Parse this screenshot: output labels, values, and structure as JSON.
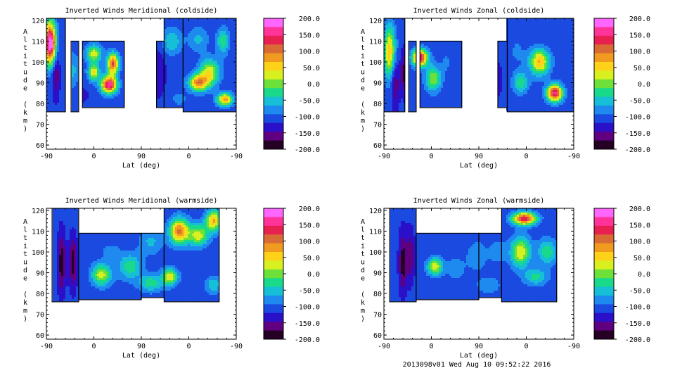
{
  "footer": "2013098v01 Wed Aug 10 09:52:22 2016",
  "colorbar": {
    "labels": [
      "200.0",
      "150.0",
      "100.0",
      "50.0",
      "0.0",
      "-50.0",
      "-100.0",
      "-150.0",
      "-200.0"
    ],
    "colors": [
      "#ff66ff",
      "#ff3399",
      "#e8204f",
      "#d96a35",
      "#f09a20",
      "#ffd21a",
      "#d8f020",
      "#6ee03a",
      "#19d98a",
      "#16bfd6",
      "#1e8af0",
      "#1a4ae0",
      "#2a10c8",
      "#600080",
      "#240024"
    ]
  },
  "chart_data": [
    {
      "type": "heatmap",
      "title": "Inverted Winds Meridional (coldside)",
      "xlabel": "Lat (deg)",
      "ylabel": "Altitude (km)",
      "xticks": [
        "-90",
        "0",
        "90",
        "0",
        "-90"
      ],
      "yticks": [
        "60",
        "70",
        "80",
        "90",
        "100",
        "110",
        "120"
      ],
      "ylim": [
        58,
        121
      ],
      "zlim": [
        -200,
        200
      ],
      "blobs": [
        {
          "ix": 0.02,
          "iy": 109,
          "sx": 0.03,
          "sy": 10,
          "v": 210
        },
        {
          "ix": 0.05,
          "iy": 95,
          "sx": 0.02,
          "sy": 12,
          "v": -170
        },
        {
          "ix": 0.14,
          "iy": 96,
          "sx": 0.03,
          "sy": 8,
          "v": -60
        },
        {
          "ix": 0.25,
          "iy": 104,
          "sx": 0.04,
          "sy": 4,
          "v": 30
        },
        {
          "ix": 0.35,
          "iy": 99,
          "sx": 0.03,
          "sy": 5,
          "v": 120
        },
        {
          "ix": 0.33,
          "iy": 89,
          "sx": 0.04,
          "sy": 4,
          "v": 170
        },
        {
          "ix": 0.19,
          "iy": 84,
          "sx": 0.04,
          "sy": 4,
          "v": -130
        },
        {
          "ix": 0.25,
          "iy": 95,
          "sx": 0.03,
          "sy": 4,
          "v": 40
        },
        {
          "ix": 0.59,
          "iy": 95,
          "sx": 0.04,
          "sy": 12,
          "v": -140
        },
        {
          "ix": 0.66,
          "iy": 110,
          "sx": 0.05,
          "sy": 6,
          "v": -40
        },
        {
          "ix": 0.8,
          "iy": 90,
          "sx": 0.05,
          "sy": 4,
          "v": 90
        },
        {
          "ix": 0.86,
          "iy": 95,
          "sx": 0.05,
          "sy": 6,
          "v": 40
        },
        {
          "ix": 0.8,
          "iy": 111,
          "sx": 0.05,
          "sy": 6,
          "v": -60
        },
        {
          "ix": 0.93,
          "iy": 110,
          "sx": 0.03,
          "sy": 6,
          "v": -20
        },
        {
          "ix": 0.94,
          "iy": 82,
          "sx": 0.04,
          "sy": 3,
          "v": 80
        },
        {
          "ix": 0.7,
          "iy": 82,
          "sx": 0.04,
          "sy": 3,
          "v": -80
        }
      ],
      "strips": [
        {
          "x0": 0.0,
          "x1": 0.1,
          "z0": 76,
          "z1": 121
        },
        {
          "x0": 0.13,
          "x1": 0.17,
          "z0": 76,
          "z1": 110
        },
        {
          "x0": 0.19,
          "x1": 0.41,
          "z0": 78,
          "z1": 110
        },
        {
          "x0": 0.58,
          "x1": 0.62,
          "z0": 78,
          "z1": 110
        },
        {
          "x0": 0.62,
          "x1": 0.72,
          "z0": 78,
          "z1": 121
        },
        {
          "x0": 0.72,
          "x1": 1.0,
          "z0": 76,
          "z1": 121
        }
      ]
    },
    {
      "type": "heatmap",
      "title": "Inverted Winds Zonal (coldside)",
      "xlabel": "Lat (deg)",
      "ylabel": "Altitude (km)",
      "xticks": [
        "-90",
        "0",
        "90",
        "0",
        "-90"
      ],
      "yticks": [
        "60",
        "70",
        "80",
        "90",
        "100",
        "110",
        "120"
      ],
      "ylim": [
        58,
        121
      ],
      "zlim": [
        -200,
        200
      ],
      "blobs": [
        {
          "ix": 0.03,
          "iy": 105,
          "sx": 0.03,
          "sy": 12,
          "v": 60
        },
        {
          "ix": 0.06,
          "iy": 90,
          "sx": 0.02,
          "sy": 12,
          "v": -170
        },
        {
          "ix": 0.11,
          "iy": 95,
          "sx": 0.02,
          "sy": 10,
          "v": -190
        },
        {
          "ix": 0.19,
          "iy": 102,
          "sx": 0.04,
          "sy": 4,
          "v": 150
        },
        {
          "ix": 0.26,
          "iy": 92,
          "sx": 0.04,
          "sy": 6,
          "v": 10
        },
        {
          "ix": 0.33,
          "iy": 100,
          "sx": 0.03,
          "sy": 6,
          "v": -90
        },
        {
          "ix": 0.6,
          "iy": 92,
          "sx": 0.03,
          "sy": 10,
          "v": -130
        },
        {
          "ix": 0.7,
          "iy": 105,
          "sx": 0.05,
          "sy": 8,
          "v": -90
        },
        {
          "ix": 0.82,
          "iy": 100,
          "sx": 0.05,
          "sy": 6,
          "v": 70
        },
        {
          "ix": 0.9,
          "iy": 85,
          "sx": 0.04,
          "sy": 4,
          "v": 160
        },
        {
          "ix": 0.72,
          "iy": 90,
          "sx": 0.04,
          "sy": 5,
          "v": -20
        },
        {
          "ix": 0.85,
          "iy": 112,
          "sx": 0.05,
          "sy": 5,
          "v": -120
        }
      ],
      "strips": [
        {
          "x0": 0.0,
          "x1": 0.11,
          "z0": 76,
          "z1": 121
        },
        {
          "x0": 0.13,
          "x1": 0.17,
          "z0": 76,
          "z1": 110
        },
        {
          "x0": 0.19,
          "x1": 0.41,
          "z0": 78,
          "z1": 110
        },
        {
          "x0": 0.6,
          "x1": 0.65,
          "z0": 78,
          "z1": 110
        },
        {
          "x0": 0.65,
          "x1": 1.0,
          "z0": 76,
          "z1": 121
        }
      ]
    },
    {
      "type": "heatmap",
      "title": "Inverted Winds Meridional (warmside)",
      "xlabel": "Lat (deg)",
      "ylabel": "Altitude (km)",
      "xticks": [
        "-90",
        "0",
        "90",
        "0",
        "-90"
      ],
      "yticks": [
        "60",
        "70",
        "80",
        "90",
        "100",
        "110",
        "120"
      ],
      "ylim": [
        58,
        121
      ],
      "zlim": [
        -200,
        200
      ],
      "blobs": [
        {
          "ix": 0.08,
          "iy": 95,
          "sx": 0.02,
          "sy": 14,
          "v": -190
        },
        {
          "ix": 0.14,
          "iy": 95,
          "sx": 0.02,
          "sy": 12,
          "v": -190
        },
        {
          "ix": 0.29,
          "iy": 89,
          "sx": 0.05,
          "sy": 5,
          "v": 30
        },
        {
          "ix": 0.34,
          "iy": 100,
          "sx": 0.05,
          "sy": 4,
          "v": -80
        },
        {
          "ix": 0.44,
          "iy": 93,
          "sx": 0.06,
          "sy": 6,
          "v": -20
        },
        {
          "ix": 0.7,
          "iy": 110,
          "sx": 0.05,
          "sy": 6,
          "v": 100
        },
        {
          "ix": 0.65,
          "iy": 88,
          "sx": 0.04,
          "sy": 4,
          "v": 40
        },
        {
          "ix": 0.8,
          "iy": 96,
          "sx": 0.04,
          "sy": 4,
          "v": -110
        },
        {
          "ix": 0.88,
          "iy": 115,
          "sx": 0.04,
          "sy": 5,
          "v": 70
        },
        {
          "ix": 0.8,
          "iy": 108,
          "sx": 0.05,
          "sy": 5,
          "v": 30
        },
        {
          "ix": 0.55,
          "iy": 105,
          "sx": 0.06,
          "sy": 6,
          "v": -60
        },
        {
          "ix": 0.55,
          "iy": 85,
          "sx": 0.06,
          "sy": 4,
          "v": -20
        },
        {
          "ix": 0.88,
          "iy": 84,
          "sx": 0.04,
          "sy": 4,
          "v": -40
        }
      ],
      "strips": [
        {
          "x0": 0.03,
          "x1": 0.17,
          "z0": 76,
          "z1": 121
        },
        {
          "x0": 0.17,
          "x1": 0.5,
          "z0": 77,
          "z1": 109
        },
        {
          "x0": 0.5,
          "x1": 0.62,
          "z0": 78,
          "z1": 109
        },
        {
          "x0": 0.62,
          "x1": 0.91,
          "z0": 76,
          "z1": 121
        }
      ]
    },
    {
      "type": "heatmap",
      "title": "Inverted Winds Zonal (warmside)",
      "xlabel": "Lat (deg)",
      "ylabel": "Altitude (km)",
      "xticks": [
        "-90",
        "0",
        "90",
        "0",
        "-90"
      ],
      "yticks": [
        "60",
        "70",
        "80",
        "90",
        "100",
        "110",
        "120"
      ],
      "ylim": [
        58,
        121
      ],
      "zlim": [
        -200,
        200
      ],
      "blobs": [
        {
          "ix": 0.1,
          "iy": 95,
          "sx": 0.02,
          "sy": 14,
          "v": -190
        },
        {
          "ix": 0.14,
          "iy": 98,
          "sx": 0.02,
          "sy": 12,
          "v": -170
        },
        {
          "ix": 0.27,
          "iy": 93,
          "sx": 0.04,
          "sy": 4,
          "v": 30
        },
        {
          "ix": 0.38,
          "iy": 92,
          "sx": 0.05,
          "sy": 6,
          "v": -80
        },
        {
          "ix": 0.49,
          "iy": 98,
          "sx": 0.05,
          "sy": 7,
          "v": -70
        },
        {
          "ix": 0.74,
          "iy": 116,
          "sx": 0.06,
          "sy": 3,
          "v": 150
        },
        {
          "ix": 0.72,
          "iy": 100,
          "sx": 0.05,
          "sy": 7,
          "v": 40
        },
        {
          "ix": 0.8,
          "iy": 88,
          "sx": 0.06,
          "sy": 4,
          "v": -30
        },
        {
          "ix": 0.6,
          "iy": 100,
          "sx": 0.05,
          "sy": 6,
          "v": -80
        },
        {
          "ix": 0.55,
          "iy": 84,
          "sx": 0.06,
          "sy": 4,
          "v": -70
        },
        {
          "ix": 0.86,
          "iy": 100,
          "sx": 0.05,
          "sy": 6,
          "v": -20
        }
      ],
      "strips": [
        {
          "x0": 0.03,
          "x1": 0.17,
          "z0": 76,
          "z1": 121
        },
        {
          "x0": 0.17,
          "x1": 0.5,
          "z0": 77,
          "z1": 109
        },
        {
          "x0": 0.5,
          "x1": 0.62,
          "z0": 78,
          "z1": 109
        },
        {
          "x0": 0.62,
          "x1": 0.91,
          "z0": 76,
          "z1": 121
        }
      ]
    }
  ]
}
